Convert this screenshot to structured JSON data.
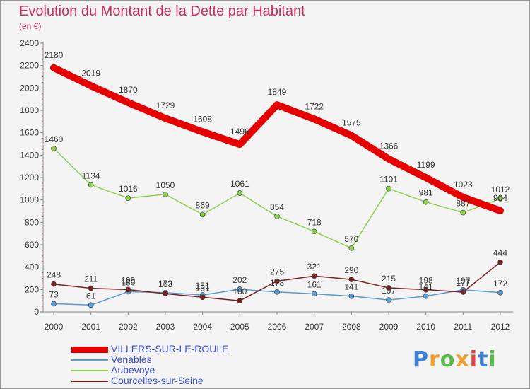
{
  "header": {
    "title": "Evolution du Montant de la Dette par Habitant",
    "unit": "(en €)"
  },
  "brand": {
    "letters": [
      {
        "ch": "P",
        "color": "#3d7fd6"
      },
      {
        "ch": "r",
        "color": "#f0a030"
      },
      {
        "ch": "o",
        "color": "#59b84a"
      },
      {
        "ch": "x",
        "color": "#f0a030"
      },
      {
        "ch": "i",
        "color": "#e04040"
      },
      {
        "ch": "t",
        "color": "#3d7fd6"
      },
      {
        "ch": "i",
        "color": "#59b84a"
      }
    ]
  },
  "chart_data": {
    "type": "line",
    "title": "Evolution du Montant de la Dette par Habitant",
    "subtitle": "(en €)",
    "xlabel": "",
    "ylabel": "",
    "categories": [
      "2000",
      "2001",
      "2002",
      "2003",
      "2004",
      "2005",
      "2006",
      "2007",
      "2008",
      "2009",
      "2010",
      "2011",
      "2012"
    ],
    "y_ticks": [
      "0",
      "200",
      "400",
      "600",
      "800",
      "1000",
      "1200",
      "1400",
      "1600",
      "1800",
      "2000",
      "2200",
      "2400"
    ],
    "ylim": [
      0,
      2400
    ],
    "grid": false,
    "legend_position": "bottom-left",
    "series": [
      {
        "name": "VILLERS-SUR-LE-ROULE",
        "color": "#e60000",
        "thick": true,
        "values": [
          2180,
          2019,
          1870,
          1729,
          1608,
          1496,
          1849,
          1722,
          1575,
          1366,
          1199,
          1023,
          904
        ]
      },
      {
        "name": "Venables",
        "color": "#5b9bd5",
        "thick": false,
        "values": [
          73,
          61,
          180,
          172,
          151,
          202,
          178,
          161,
          141,
          107,
          141,
          197,
          172
        ],
        "labels": [
          "73",
          "61",
          "180",
          "172",
          "151",
          "202",
          "178",
          "161",
          "141",
          "107",
          "141",
          "197",
          "172"
        ]
      },
      {
        "name": "Aubevoye",
        "color": "#8fd14f",
        "thick": false,
        "values": [
          1460,
          1134,
          1016,
          1050,
          869,
          1061,
          854,
          718,
          570,
          1101,
          981,
          887,
          1012
        ]
      },
      {
        "name": "Courcelles-sur-Seine",
        "color": "#7a2222",
        "thick": false,
        "values": [
          248,
          211,
          199,
          163,
          131,
          100,
          275,
          321,
          290,
          215,
          198,
          177,
          444
        ],
        "labels": [
          "248",
          "211",
          "199",
          "163",
          "131",
          "100",
          "275",
          "321",
          "290",
          "215",
          "198",
          "177",
          "444"
        ]
      }
    ]
  }
}
